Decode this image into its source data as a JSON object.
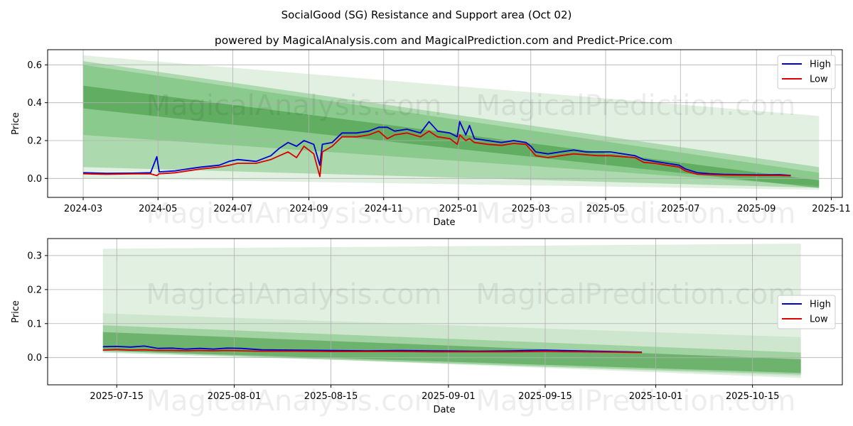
{
  "title": "SocialGood (SG) Resistance and Support area (Oct 02)",
  "subtitle": "powered by MagicalAnalysis.com and MagicalPrediction.com and Predict-Price.com",
  "watermarks": [
    "MagicalAnalysis.com",
    "MagicalPrediction.com"
  ],
  "colors": {
    "high": "#0000cc",
    "low": "#dd0000",
    "band_dark": "#2e8b2e",
    "band_light": "#a8d5a8",
    "grid": "#b0b0b0"
  },
  "chart_data": [
    {
      "type": "line",
      "name": "full-range",
      "xlabel": "Date",
      "ylabel": "Price",
      "grid": true,
      "legend": "top-right",
      "x_range": [
        "2024-02-01",
        "2025-11-10"
      ],
      "y_range": [
        -0.1,
        0.68
      ],
      "x_ticks": [
        {
          "date": "2024-03-01",
          "label": "2024-03"
        },
        {
          "date": "2024-05-01",
          "label": "2024-05"
        },
        {
          "date": "2024-07-01",
          "label": "2024-07"
        },
        {
          "date": "2024-09-01",
          "label": "2024-09"
        },
        {
          "date": "2024-11-01",
          "label": "2024-11"
        },
        {
          "date": "2025-01-01",
          "label": "2025-01"
        },
        {
          "date": "2025-03-01",
          "label": "2025-03"
        },
        {
          "date": "2025-05-01",
          "label": "2025-05"
        },
        {
          "date": "2025-07-01",
          "label": "2025-07"
        },
        {
          "date": "2025-09-01",
          "label": "2025-09"
        },
        {
          "date": "2025-11-01",
          "label": "2025-11"
        }
      ],
      "y_ticks": [
        {
          "value": 0.0,
          "label": "0.0"
        },
        {
          "value": 0.2,
          "label": "0.2"
        },
        {
          "value": 0.4,
          "label": "0.4"
        },
        {
          "value": 0.6,
          "label": "0.6"
        }
      ],
      "bands": [
        {
          "x0": "2024-03-01",
          "x1": "2025-10-22",
          "y0_top": 0.65,
          "y0_bot": 0.0,
          "y1_top": 0.33,
          "y1_bot": -0.06,
          "level": "light"
        },
        {
          "x0": "2024-03-01",
          "x1": "2025-10-22",
          "y0_top": 0.62,
          "y0_bot": 0.06,
          "y1_top": 0.06,
          "y1_bot": -0.05,
          "level": "mid"
        },
        {
          "x0": "2024-03-01",
          "x1": "2025-10-22",
          "y0_top": 0.6,
          "y0_bot": 0.23,
          "y1_top": 0.03,
          "y1_bot": -0.04,
          "level": "mid"
        },
        {
          "x0": "2024-03-01",
          "x1": "2025-10-22",
          "y0_top": 0.49,
          "y0_bot": 0.37,
          "y1_top": -0.01,
          "y1_bot": -0.05,
          "level": "dark"
        }
      ],
      "series": [
        {
          "name": "High",
          "points": [
            [
              "2024-03-01",
              0.03
            ],
            [
              "2024-03-20",
              0.027
            ],
            [
              "2024-04-10",
              0.028
            ],
            [
              "2024-04-25",
              0.03
            ],
            [
              "2024-04-30",
              0.115
            ],
            [
              "2024-05-02",
              0.035
            ],
            [
              "2024-05-15",
              0.04
            ],
            [
              "2024-05-25",
              0.05
            ],
            [
              "2024-06-05",
              0.06
            ],
            [
              "2024-06-20",
              0.07
            ],
            [
              "2024-06-28",
              0.09
            ],
            [
              "2024-07-05",
              0.1
            ],
            [
              "2024-07-20",
              0.09
            ],
            [
              "2024-08-01",
              0.12
            ],
            [
              "2024-08-08",
              0.16
            ],
            [
              "2024-08-15",
              0.19
            ],
            [
              "2024-08-22",
              0.17
            ],
            [
              "2024-08-28",
              0.2
            ],
            [
              "2024-09-05",
              0.18
            ],
            [
              "2024-09-10",
              0.07
            ],
            [
              "2024-09-12",
              0.18
            ],
            [
              "2024-09-20",
              0.19
            ],
            [
              "2024-09-28",
              0.24
            ],
            [
              "2024-10-10",
              0.24
            ],
            [
              "2024-10-20",
              0.25
            ],
            [
              "2024-10-28",
              0.27
            ],
            [
              "2024-11-04",
              0.27
            ],
            [
              "2024-11-10",
              0.25
            ],
            [
              "2024-11-20",
              0.26
            ],
            [
              "2024-12-01",
              0.24
            ],
            [
              "2024-12-08",
              0.3
            ],
            [
              "2024-12-15",
              0.25
            ],
            [
              "2024-12-25",
              0.24
            ],
            [
              "2024-12-31",
              0.22
            ],
            [
              "2025-01-02",
              0.3
            ],
            [
              "2025-01-07",
              0.23
            ],
            [
              "2025-01-10",
              0.28
            ],
            [
              "2025-01-14",
              0.21
            ],
            [
              "2025-01-25",
              0.2
            ],
            [
              "2025-02-05",
              0.19
            ],
            [
              "2025-02-15",
              0.2
            ],
            [
              "2025-02-25",
              0.19
            ],
            [
              "2025-03-01",
              0.17
            ],
            [
              "2025-03-05",
              0.14
            ],
            [
              "2025-03-15",
              0.13
            ],
            [
              "2025-03-25",
              0.14
            ],
            [
              "2025-04-05",
              0.15
            ],
            [
              "2025-04-15",
              0.14
            ],
            [
              "2025-04-25",
              0.14
            ],
            [
              "2025-05-05",
              0.14
            ],
            [
              "2025-05-15",
              0.13
            ],
            [
              "2025-05-25",
              0.12
            ],
            [
              "2025-06-01",
              0.1
            ],
            [
              "2025-06-10",
              0.09
            ],
            [
              "2025-06-20",
              0.08
            ],
            [
              "2025-06-30",
              0.07
            ],
            [
              "2025-07-05",
              0.05
            ],
            [
              "2025-07-15",
              0.03
            ],
            [
              "2025-07-25",
              0.025
            ],
            [
              "2025-08-05",
              0.022
            ],
            [
              "2025-08-20",
              0.02
            ],
            [
              "2025-09-05",
              0.019
            ],
            [
              "2025-09-20",
              0.02
            ],
            [
              "2025-09-29",
              0.016
            ]
          ]
        },
        {
          "name": "Low",
          "points": [
            [
              "2024-03-01",
              0.025
            ],
            [
              "2024-03-20",
              0.022
            ],
            [
              "2024-04-10",
              0.024
            ],
            [
              "2024-04-25",
              0.024
            ],
            [
              "2024-04-30",
              0.015
            ],
            [
              "2024-05-02",
              0.025
            ],
            [
              "2024-05-15",
              0.03
            ],
            [
              "2024-05-25",
              0.04
            ],
            [
              "2024-06-05",
              0.05
            ],
            [
              "2024-06-20",
              0.06
            ],
            [
              "2024-06-28",
              0.07
            ],
            [
              "2024-07-05",
              0.08
            ],
            [
              "2024-07-20",
              0.08
            ],
            [
              "2024-08-01",
              0.1
            ],
            [
              "2024-08-08",
              0.12
            ],
            [
              "2024-08-15",
              0.14
            ],
            [
              "2024-08-22",
              0.11
            ],
            [
              "2024-08-28",
              0.17
            ],
            [
              "2024-09-05",
              0.13
            ],
            [
              "2024-09-10",
              0.01
            ],
            [
              "2024-09-12",
              0.14
            ],
            [
              "2024-09-20",
              0.17
            ],
            [
              "2024-09-28",
              0.22
            ],
            [
              "2024-10-10",
              0.22
            ],
            [
              "2024-10-20",
              0.23
            ],
            [
              "2024-10-28",
              0.25
            ],
            [
              "2024-11-04",
              0.21
            ],
            [
              "2024-11-10",
              0.23
            ],
            [
              "2024-11-20",
              0.24
            ],
            [
              "2024-12-01",
              0.22
            ],
            [
              "2024-12-08",
              0.25
            ],
            [
              "2024-12-15",
              0.22
            ],
            [
              "2024-12-25",
              0.21
            ],
            [
              "2024-12-31",
              0.18
            ],
            [
              "2025-01-02",
              0.23
            ],
            [
              "2025-01-07",
              0.2
            ],
            [
              "2025-01-10",
              0.21
            ],
            [
              "2025-01-14",
              0.19
            ],
            [
              "2025-01-25",
              0.18
            ],
            [
              "2025-02-05",
              0.175
            ],
            [
              "2025-02-15",
              0.185
            ],
            [
              "2025-02-25",
              0.18
            ],
            [
              "2025-03-01",
              0.15
            ],
            [
              "2025-03-05",
              0.12
            ],
            [
              "2025-03-15",
              0.11
            ],
            [
              "2025-03-25",
              0.12
            ],
            [
              "2025-04-05",
              0.13
            ],
            [
              "2025-04-15",
              0.125
            ],
            [
              "2025-04-25",
              0.12
            ],
            [
              "2025-05-05",
              0.12
            ],
            [
              "2025-05-15",
              0.115
            ],
            [
              "2025-05-25",
              0.11
            ],
            [
              "2025-06-01",
              0.085
            ],
            [
              "2025-06-10",
              0.08
            ],
            [
              "2025-06-20",
              0.07
            ],
            [
              "2025-06-30",
              0.06
            ],
            [
              "2025-07-05",
              0.04
            ],
            [
              "2025-07-15",
              0.022
            ],
            [
              "2025-07-25",
              0.02
            ],
            [
              "2025-08-05",
              0.018
            ],
            [
              "2025-08-20",
              0.017
            ],
            [
              "2025-09-05",
              0.016
            ],
            [
              "2025-09-20",
              0.016
            ],
            [
              "2025-09-29",
              0.014
            ]
          ]
        }
      ]
    },
    {
      "type": "line",
      "name": "recent-zoom",
      "xlabel": "Date",
      "ylabel": "Price",
      "grid": true,
      "legend": "center-right",
      "x_range": [
        "2025-07-05",
        "2025-10-28"
      ],
      "y_range": [
        -0.08,
        0.35
      ],
      "x_ticks": [
        {
          "date": "2025-07-15",
          "label": "2025-07-15"
        },
        {
          "date": "2025-08-01",
          "label": "2025-08-01"
        },
        {
          "date": "2025-08-15",
          "label": "2025-08-15"
        },
        {
          "date": "2025-09-01",
          "label": "2025-09-01"
        },
        {
          "date": "2025-09-15",
          "label": "2025-09-15"
        },
        {
          "date": "2025-10-01",
          "label": "2025-10-01"
        },
        {
          "date": "2025-10-15",
          "label": "2025-10-15"
        }
      ],
      "y_ticks": [
        {
          "value": 0.0,
          "label": "0.0"
        },
        {
          "value": 0.1,
          "label": "0.1"
        },
        {
          "value": 0.2,
          "label": "0.2"
        },
        {
          "value": 0.3,
          "label": "0.3"
        }
      ],
      "bands": [
        {
          "x0": "2025-07-13",
          "x1": "2025-10-22",
          "y0_top": 0.32,
          "y0_bot": 0.02,
          "y1_top": 0.335,
          "y1_bot": -0.06,
          "level": "light"
        },
        {
          "x0": "2025-07-13",
          "x1": "2025-10-22",
          "y0_top": 0.13,
          "y0_bot": 0.02,
          "y1_top": 0.06,
          "y1_bot": -0.055,
          "level": "light"
        },
        {
          "x0": "2025-07-13",
          "x1": "2025-10-22",
          "y0_top": 0.095,
          "y0_bot": 0.015,
          "y1_top": 0.015,
          "y1_bot": -0.05,
          "level": "mid"
        },
        {
          "x0": "2025-07-13",
          "x1": "2025-10-22",
          "y0_top": 0.075,
          "y0_bot": 0.02,
          "y1_top": -0.005,
          "y1_bot": -0.045,
          "level": "dark"
        }
      ],
      "series": [
        {
          "name": "High",
          "points": [
            [
              "2025-07-13",
              0.032
            ],
            [
              "2025-07-15",
              0.033
            ],
            [
              "2025-07-17",
              0.031
            ],
            [
              "2025-07-19",
              0.034
            ],
            [
              "2025-07-21",
              0.027
            ],
            [
              "2025-07-23",
              0.028
            ],
            [
              "2025-07-25",
              0.025
            ],
            [
              "2025-07-27",
              0.027
            ],
            [
              "2025-07-29",
              0.025
            ],
            [
              "2025-07-31",
              0.028
            ],
            [
              "2025-08-02",
              0.027
            ],
            [
              "2025-08-05",
              0.023
            ],
            [
              "2025-08-10",
              0.022
            ],
            [
              "2025-08-15",
              0.021
            ],
            [
              "2025-08-20",
              0.02
            ],
            [
              "2025-08-25",
              0.021
            ],
            [
              "2025-08-30",
              0.02
            ],
            [
              "2025-09-05",
              0.019
            ],
            [
              "2025-09-10",
              0.02
            ],
            [
              "2025-09-15",
              0.022
            ],
            [
              "2025-09-20",
              0.02
            ],
            [
              "2025-09-25",
              0.018
            ],
            [
              "2025-09-29",
              0.016
            ]
          ]
        },
        {
          "name": "Low",
          "points": [
            [
              "2025-07-13",
              0.022
            ],
            [
              "2025-07-15",
              0.024
            ],
            [
              "2025-07-17",
              0.022
            ],
            [
              "2025-07-19",
              0.023
            ],
            [
              "2025-07-21",
              0.021
            ],
            [
              "2025-07-23",
              0.021
            ],
            [
              "2025-07-25",
              0.02
            ],
            [
              "2025-07-27",
              0.021
            ],
            [
              "2025-07-29",
              0.02
            ],
            [
              "2025-07-31",
              0.021
            ],
            [
              "2025-08-02",
              0.02
            ],
            [
              "2025-08-05",
              0.019
            ],
            [
              "2025-08-10",
              0.019
            ],
            [
              "2025-08-15",
              0.018
            ],
            [
              "2025-08-20",
              0.018
            ],
            [
              "2025-08-25",
              0.018
            ],
            [
              "2025-08-30",
              0.017
            ],
            [
              "2025-09-05",
              0.017
            ],
            [
              "2025-09-10",
              0.017
            ],
            [
              "2025-09-15",
              0.018
            ],
            [
              "2025-09-20",
              0.017
            ],
            [
              "2025-09-25",
              0.016
            ],
            [
              "2025-09-29",
              0.015
            ]
          ]
        }
      ]
    }
  ]
}
